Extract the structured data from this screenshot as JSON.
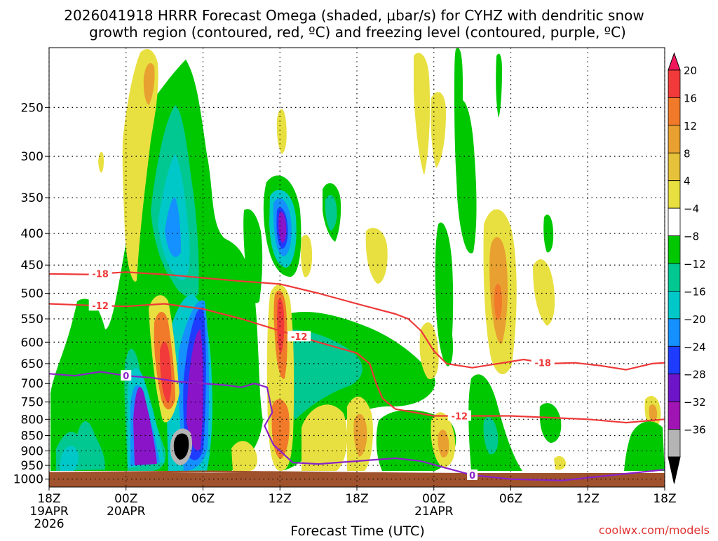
{
  "chart_data": {
    "type": "heatmap",
    "title_line1": "2026041918 HRRR Forecast Omega (shaded, μbar/s) for CYHZ with dendritic snow",
    "title_line2": "growth region (contoured, red, ºC) and freezing level (contoured, purple, ºC)",
    "xlabel": "Forecast Time (UTC)",
    "credit": "coolwx.com/models",
    "y_scale": "log",
    "ylim": [
      1030,
      200
    ],
    "xlim": [
      0,
      48
    ],
    "grid": true,
    "y_ticks": [
      250,
      300,
      350,
      400,
      450,
      500,
      550,
      600,
      650,
      700,
      750,
      800,
      850,
      900,
      950,
      1000
    ],
    "x_ticks": [
      {
        "hour": 0,
        "label": "18Z",
        "sub1": "19APR",
        "sub2": "2026"
      },
      {
        "hour": 6,
        "label": "00Z",
        "sub1": "20APR",
        "sub2": ""
      },
      {
        "hour": 12,
        "label": "06Z",
        "sub1": "",
        "sub2": ""
      },
      {
        "hour": 18,
        "label": "12Z",
        "sub1": "",
        "sub2": ""
      },
      {
        "hour": 24,
        "label": "18Z",
        "sub1": "",
        "sub2": ""
      },
      {
        "hour": 30,
        "label": "00Z",
        "sub1": "21APR",
        "sub2": ""
      },
      {
        "hour": 36,
        "label": "06Z",
        "sub1": "",
        "sub2": ""
      },
      {
        "hour": 42,
        "label": "12Z",
        "sub1": "",
        "sub2": ""
      },
      {
        "hour": 48,
        "label": "18Z",
        "sub1": "",
        "sub2": ""
      }
    ],
    "colorbar": {
      "labels": [
        "20",
        "16",
        "12",
        "8",
        "4",
        "−4",
        "−8",
        "−12",
        "−16",
        "−20",
        "−24",
        "−28",
        "−32",
        "−36"
      ],
      "colors": [
        "#f2185c",
        "#f23a3a",
        "#f07a2a",
        "#e8a030",
        "#e6c23a",
        "#e8e040",
        "#ffffff",
        "#00c800",
        "#00c890",
        "#00c8c8",
        "#1490ff",
        "#1e3cff",
        "#6e14c8",
        "#a014b4",
        "#b4b4b4",
        "#000000"
      ]
    },
    "contours": [
      {
        "label": "-18",
        "color": "#ee3838",
        "points": [
          [
            0,
            465
          ],
          [
            3,
            466
          ],
          [
            6,
            462
          ],
          [
            9,
            466
          ],
          [
            12,
            472
          ],
          [
            15,
            478
          ],
          [
            18,
            483
          ],
          [
            21,
            500
          ],
          [
            24,
            520
          ],
          [
            27,
            540
          ],
          [
            28,
            550
          ],
          [
            29,
            575
          ],
          [
            30,
            620
          ],
          [
            31,
            650
          ],
          [
            33,
            660
          ],
          [
            35,
            650
          ],
          [
            37,
            640
          ],
          [
            39,
            650
          ],
          [
            41,
            648
          ],
          [
            43,
            655
          ],
          [
            45,
            665
          ],
          [
            47,
            650
          ],
          [
            48,
            648
          ]
        ],
        "label_positions": [
          4,
          38.5
        ]
      },
      {
        "label": "-12",
        "color": "#ee3838",
        "points": [
          [
            0,
            520
          ],
          [
            3,
            523
          ],
          [
            6,
            525
          ],
          [
            9,
            520
          ],
          [
            12,
            530
          ],
          [
            15,
            550
          ],
          [
            18,
            575
          ],
          [
            21,
            600
          ],
          [
            24,
            625
          ],
          [
            25,
            650
          ],
          [
            25.5,
            700
          ],
          [
            26,
            740
          ],
          [
            27,
            770
          ],
          [
            30,
            790
          ],
          [
            33,
            790
          ],
          [
            36,
            790
          ],
          [
            39,
            795
          ],
          [
            42,
            800
          ],
          [
            45,
            810
          ],
          [
            48,
            800
          ]
        ],
        "label_positions": [
          4,
          19.5,
          32
        ]
      },
      {
        "label": "0",
        "color": "#8a22c8",
        "points": [
          [
            0,
            675
          ],
          [
            2,
            680
          ],
          [
            4,
            670
          ],
          [
            6,
            680
          ],
          [
            8,
            685
          ],
          [
            10,
            695
          ],
          [
            12,
            700
          ],
          [
            14,
            705
          ],
          [
            15,
            710
          ],
          [
            16,
            700
          ],
          [
            17,
            710
          ],
          [
            17.4,
            780
          ],
          [
            16.8,
            820
          ],
          [
            17.5,
            880
          ],
          [
            19,
            940
          ],
          [
            21,
            945
          ],
          [
            24,
            935
          ],
          [
            27,
            925
          ],
          [
            29,
            935
          ],
          [
            31,
            960
          ],
          [
            33,
            985
          ],
          [
            36,
            1000
          ],
          [
            40,
            1005
          ],
          [
            44,
            985
          ],
          [
            48,
            965
          ]
        ],
        "label_positions": [
          6,
          33
        ]
      }
    ],
    "omega_features": [
      {
        "value": -8,
        "t": [
          1.5,
          6
        ],
        "p": [
          600,
          1000
        ]
      },
      {
        "value": -12,
        "t": [
          1.5,
          5.5
        ],
        "p": [
          850,
          975
        ]
      },
      {
        "value": -24,
        "t": [
          7,
          8.5
        ],
        "p": [
          700,
          975
        ]
      },
      {
        "value": -36,
        "t": [
          10.5,
          11.8
        ],
        "p": [
          850,
          950
        ]
      },
      {
        "value": -28,
        "t": [
          18,
          18.8
        ],
        "p": [
          330,
          470
        ]
      },
      {
        "value": 16,
        "t": [
          8.5,
          10
        ],
        "p": [
          520,
          760
        ]
      },
      {
        "value": 16,
        "t": [
          17.8,
          18.6
        ],
        "p": [
          520,
          640
        ]
      },
      {
        "value": 12,
        "t": [
          35.5,
          38
        ],
        "p": [
          380,
          650
        ]
      }
    ]
  }
}
